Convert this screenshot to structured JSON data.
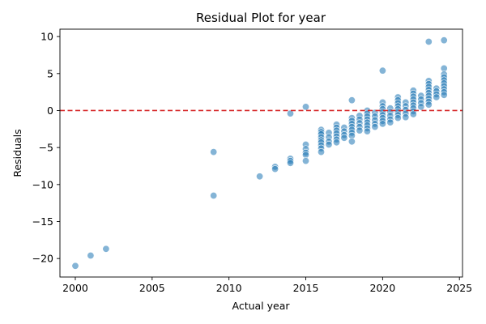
{
  "chart_data": {
    "type": "scatter",
    "title": "Residual Plot for year",
    "xlabel": "Actual year",
    "ylabel": "Residuals",
    "xlim": [
      1999,
      2025.2
    ],
    "ylim": [
      -22.5,
      11.0
    ],
    "xticks": [
      2000,
      2005,
      2010,
      2015,
      2020,
      2025
    ],
    "yticks": [
      -20,
      -15,
      -10,
      -5,
      0,
      5,
      10
    ],
    "grid": false,
    "legend": "none",
    "reference_line": {
      "y": 0,
      "style": "dashed",
      "color": "#d62728"
    },
    "point_color": "#1f77b4",
    "point_alpha": 0.55,
    "points": [
      [
        2000,
        -21.0
      ],
      [
        2001,
        -19.6
      ],
      [
        2002,
        -18.7
      ],
      [
        2009,
        -5.6
      ],
      [
        2009,
        -11.5
      ],
      [
        2012,
        -8.9
      ],
      [
        2013,
        -7.6
      ],
      [
        2013,
        -7.9
      ],
      [
        2014,
        -0.4
      ],
      [
        2014,
        -6.5
      ],
      [
        2014,
        -6.8
      ],
      [
        2014,
        -7.1
      ],
      [
        2015,
        0.5
      ],
      [
        2015,
        -4.6
      ],
      [
        2015,
        -5.2
      ],
      [
        2015,
        -5.7
      ],
      [
        2015,
        -6.0
      ],
      [
        2015,
        -6.8
      ],
      [
        2016,
        -2.6
      ],
      [
        2016,
        -2.9
      ],
      [
        2016,
        -3.2
      ],
      [
        2016,
        -3.6
      ],
      [
        2016,
        -4.0
      ],
      [
        2016,
        -4.3
      ],
      [
        2016,
        -4.7
      ],
      [
        2016,
        -5.1
      ],
      [
        2016,
        -5.6
      ],
      [
        2016.5,
        -3.0
      ],
      [
        2016.5,
        -3.6
      ],
      [
        2016.5,
        -4.2
      ],
      [
        2016.5,
        -4.6
      ],
      [
        2017,
        -1.9
      ],
      [
        2017,
        -2.3
      ],
      [
        2017,
        -2.7
      ],
      [
        2017,
        -3.1
      ],
      [
        2017,
        -3.5
      ],
      [
        2017,
        -3.9
      ],
      [
        2017,
        -4.3
      ],
      [
        2017.5,
        -2.3
      ],
      [
        2017.5,
        -2.8
      ],
      [
        2017.5,
        -3.3
      ],
      [
        2017.5,
        -3.7
      ],
      [
        2018,
        1.4
      ],
      [
        2018,
        -1.0
      ],
      [
        2018,
        -1.4
      ],
      [
        2018,
        -1.8
      ],
      [
        2018,
        -2.2
      ],
      [
        2018,
        -2.6
      ],
      [
        2018,
        -3.0
      ],
      [
        2018,
        -3.4
      ],
      [
        2018,
        -4.2
      ],
      [
        2018.5,
        -0.7
      ],
      [
        2018.5,
        -1.2
      ],
      [
        2018.5,
        -1.7
      ],
      [
        2018.5,
        -2.2
      ],
      [
        2018.5,
        -2.7
      ],
      [
        2019,
        0.0
      ],
      [
        2019,
        -0.4
      ],
      [
        2019,
        -0.8
      ],
      [
        2019,
        -1.2
      ],
      [
        2019,
        -1.6
      ],
      [
        2019,
        -2.0
      ],
      [
        2019,
        -2.4
      ],
      [
        2019,
        -2.8
      ],
      [
        2019.5,
        -0.3
      ],
      [
        2019.5,
        -0.8
      ],
      [
        2019.5,
        -1.3
      ],
      [
        2019.5,
        -1.8
      ],
      [
        2019.5,
        -2.2
      ],
      [
        2020,
        5.4
      ],
      [
        2020,
        1.1
      ],
      [
        2020,
        0.6
      ],
      [
        2020,
        0.2
      ],
      [
        2020,
        -0.2
      ],
      [
        2020,
        -0.6
      ],
      [
        2020,
        -1.0
      ],
      [
        2020,
        -1.4
      ],
      [
        2020,
        -1.8
      ],
      [
        2020.5,
        0.3
      ],
      [
        2020.5,
        -0.2
      ],
      [
        2020.5,
        -0.7
      ],
      [
        2020.5,
        -1.2
      ],
      [
        2020.5,
        -1.6
      ],
      [
        2021,
        1.8
      ],
      [
        2021,
        1.4
      ],
      [
        2021,
        1.0
      ],
      [
        2021,
        0.6
      ],
      [
        2021,
        0.2
      ],
      [
        2021,
        -0.2
      ],
      [
        2021,
        -0.6
      ],
      [
        2021,
        -1.0
      ],
      [
        2021.5,
        1.1
      ],
      [
        2021.5,
        0.6
      ],
      [
        2021.5,
        0.1
      ],
      [
        2021.5,
        -0.4
      ],
      [
        2021.5,
        -0.9
      ],
      [
        2022,
        2.7
      ],
      [
        2022,
        2.3
      ],
      [
        2022,
        1.9
      ],
      [
        2022,
        1.5
      ],
      [
        2022,
        1.1
      ],
      [
        2022,
        0.7
      ],
      [
        2022,
        0.3
      ],
      [
        2022,
        -0.1
      ],
      [
        2022,
        -0.5
      ],
      [
        2022.5,
        2.0
      ],
      [
        2022.5,
        1.5
      ],
      [
        2022.5,
        1.0
      ],
      [
        2022.5,
        0.5
      ],
      [
        2023,
        9.3
      ],
      [
        2023,
        4.0
      ],
      [
        2023,
        3.6
      ],
      [
        2023,
        3.2
      ],
      [
        2023,
        2.8
      ],
      [
        2023,
        2.4
      ],
      [
        2023,
        2.0
      ],
      [
        2023,
        1.6
      ],
      [
        2023,
        1.2
      ],
      [
        2023,
        0.8
      ],
      [
        2023.5,
        3.0
      ],
      [
        2023.5,
        2.6
      ],
      [
        2023.5,
        2.2
      ],
      [
        2023.5,
        1.8
      ],
      [
        2024,
        9.5
      ],
      [
        2024,
        5.7
      ],
      [
        2024,
        4.9
      ],
      [
        2024,
        4.5
      ],
      [
        2024,
        4.1
      ],
      [
        2024,
        3.7
      ],
      [
        2024,
        3.3
      ],
      [
        2024,
        2.9
      ],
      [
        2024,
        2.5
      ],
      [
        2024,
        2.1
      ]
    ]
  }
}
